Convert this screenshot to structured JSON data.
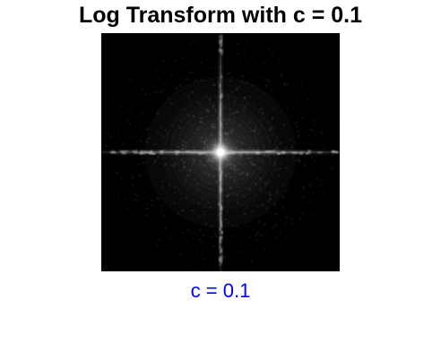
{
  "figure": {
    "title": "Log Transform with c = 0.1",
    "caption": "c = 0.1",
    "caption_color": "#0000ff",
    "image_description": "log-transformed Fourier magnitude spectrum",
    "background": "#000000"
  }
}
